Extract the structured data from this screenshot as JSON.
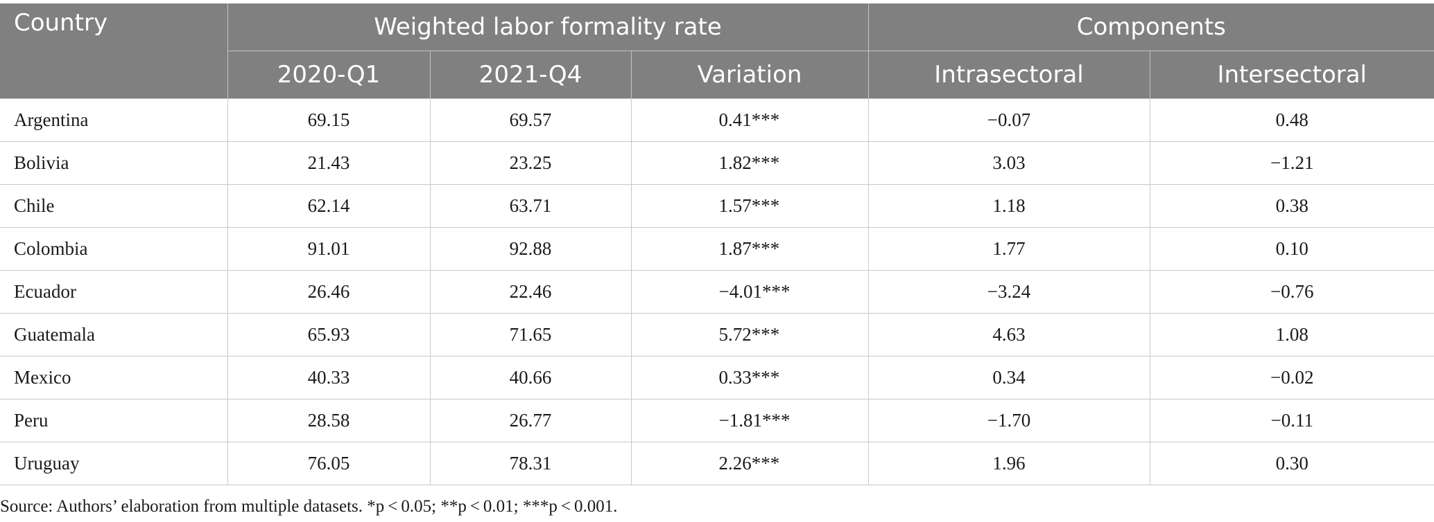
{
  "table": {
    "headers": {
      "country": "Country",
      "group_weighted": "Weighted labor formality rate",
      "group_components": "Components",
      "sub": [
        "2020-Q1",
        "2021-Q4",
        "Variation",
        "Intrasectoral",
        "Intersectoral"
      ]
    },
    "rows": [
      {
        "country": "Argentina",
        "q1_2020": "69.15",
        "q4_2021": "69.57",
        "variation": "0.41***",
        "intrasectoral": "−0.07",
        "intersectoral": "0.48"
      },
      {
        "country": "Bolivia",
        "q1_2020": "21.43",
        "q4_2021": "23.25",
        "variation": "1.82***",
        "intrasectoral": "3.03",
        "intersectoral": "−1.21"
      },
      {
        "country": "Chile",
        "q1_2020": "62.14",
        "q4_2021": "63.71",
        "variation": "1.57***",
        "intrasectoral": "1.18",
        "intersectoral": "0.38"
      },
      {
        "country": "Colombia",
        "q1_2020": "91.01",
        "q4_2021": "92.88",
        "variation": "1.87***",
        "intrasectoral": "1.77",
        "intersectoral": "0.10"
      },
      {
        "country": "Ecuador",
        "q1_2020": "26.46",
        "q4_2021": "22.46",
        "variation": "−4.01***",
        "intrasectoral": "−3.24",
        "intersectoral": "−0.76"
      },
      {
        "country": "Guatemala",
        "q1_2020": "65.93",
        "q4_2021": "71.65",
        "variation": "5.72***",
        "intrasectoral": "4.63",
        "intersectoral": "1.08"
      },
      {
        "country": "Mexico",
        "q1_2020": "40.33",
        "q4_2021": "40.66",
        "variation": "0.33***",
        "intrasectoral": "0.34",
        "intersectoral": "−0.02"
      },
      {
        "country": "Peru",
        "q1_2020": "28.58",
        "q4_2021": "26.77",
        "variation": "−1.81***",
        "intrasectoral": "−1.70",
        "intersectoral": "−0.11"
      },
      {
        "country": "Uruguay",
        "q1_2020": "76.05",
        "q4_2021": "78.31",
        "variation": "2.26***",
        "intrasectoral": "1.96",
        "intersectoral": "0.30"
      }
    ]
  },
  "footnote": "Source: Authors’ elaboration from multiple datasets. *p < 0.05; **p < 0.01; ***p < 0.001.",
  "colors": {
    "header_bg": "#808080",
    "header_text": "#ffffff",
    "grid": "#c9c9c9"
  }
}
